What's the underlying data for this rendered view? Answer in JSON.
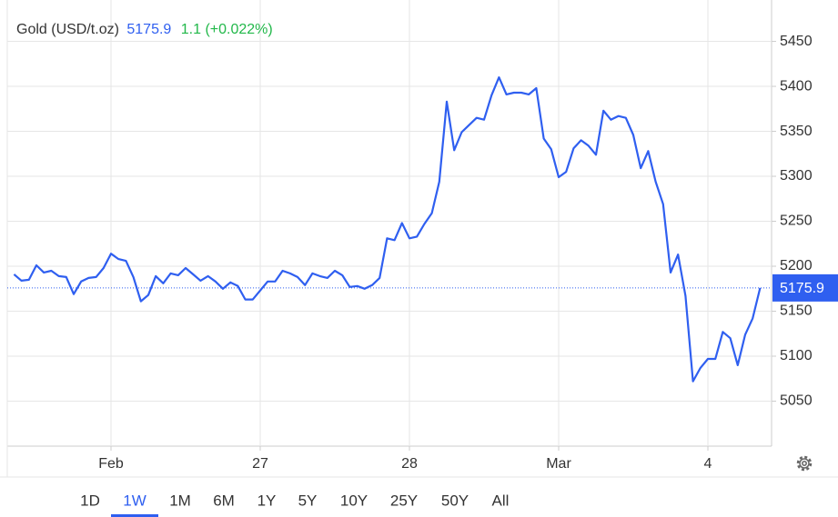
{
  "chart_data": {
    "type": "line",
    "series": [
      {
        "name": "Gold (USD/t.oz)",
        "color": "#2f5ff0",
        "values": [
          5191,
          5184,
          5185,
          5201,
          5193,
          5195,
          5189,
          5188,
          5169,
          5183,
          5187,
          5188,
          5198,
          5214,
          5208,
          5206,
          5188,
          5161,
          5168,
          5189,
          5181,
          5192,
          5190,
          5198,
          5191,
          5184,
          5189,
          5183,
          5175,
          5182,
          5178,
          5163,
          5163,
          5173,
          5183,
          5183,
          5195,
          5192,
          5188,
          5179,
          5192,
          5189,
          5187,
          5195,
          5190,
          5177,
          5178,
          5175,
          5179,
          5187,
          5231,
          5229,
          5248,
          5231,
          5233,
          5247,
          5259,
          5294,
          5383,
          5329,
          5349,
          5357,
          5365,
          5363,
          5390,
          5410,
          5391,
          5393,
          5393,
          5391,
          5398,
          5342,
          5330,
          5299,
          5305,
          5331,
          5340,
          5334,
          5324,
          5373,
          5363,
          5367,
          5365,
          5346,
          5309,
          5328,
          5294,
          5269,
          5193,
          5213,
          5167,
          5072,
          5087,
          5097,
          5097,
          5127,
          5120,
          5090,
          5124,
          5142,
          5175.9
        ]
      }
    ],
    "categories": [
      null,
      null,
      null,
      null,
      null,
      null,
      null,
      null,
      null,
      null,
      null,
      null,
      null,
      "Feb",
      null,
      null,
      null,
      null,
      null,
      null,
      null,
      null,
      null,
      null,
      null,
      null,
      null,
      null,
      null,
      null,
      null,
      null,
      null,
      "27",
      null,
      null,
      null,
      null,
      null,
      null,
      null,
      null,
      null,
      null,
      null,
      null,
      null,
      null,
      null,
      null,
      null,
      null,
      null,
      "28",
      null,
      null,
      null,
      null,
      null,
      null,
      null,
      null,
      null,
      null,
      null,
      null,
      null,
      null,
      null,
      null,
      null,
      null,
      null,
      "Mar",
      null,
      null,
      null,
      null,
      null,
      null,
      null,
      null,
      null,
      null,
      null,
      null,
      null,
      null,
      null,
      null,
      null,
      null,
      null,
      "4",
      null,
      null,
      null,
      null,
      null,
      null,
      null
    ],
    "last": 5175.9,
    "change": "1.1 (+0.022%)",
    "change_color": "#22b84a",
    "ylim": [
      5000,
      5495
    ],
    "yticks": [
      5050,
      5100,
      5150,
      5200,
      5250,
      5300,
      5350,
      5400,
      5450
    ],
    "grid": true
  },
  "controls": {
    "ranges": [
      "1D",
      "1W",
      "1M",
      "6M",
      "1Y",
      "5Y",
      "10Y",
      "25Y",
      "50Y",
      "All"
    ],
    "active": 1
  }
}
